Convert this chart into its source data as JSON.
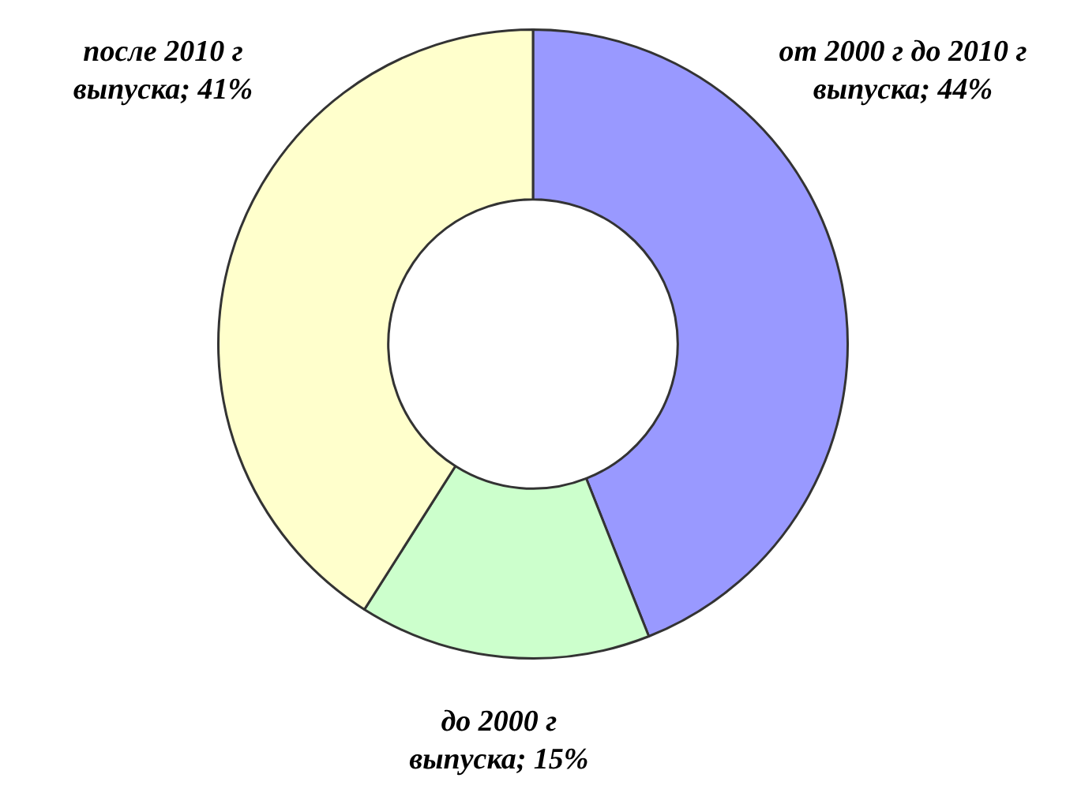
{
  "chart_data": {
    "type": "donut",
    "categories": [
      "от 2000 г до 2010 г выпуска",
      "до 2000 г выпуска",
      "после 2010 г выпуска"
    ],
    "values": [
      44,
      15,
      41
    ],
    "colors": [
      "#9999ff",
      "#ccffcc",
      "#ffffcc"
    ],
    "value_labels": [
      "44%",
      "15%",
      "41%"
    ],
    "legend": false
  }
}
